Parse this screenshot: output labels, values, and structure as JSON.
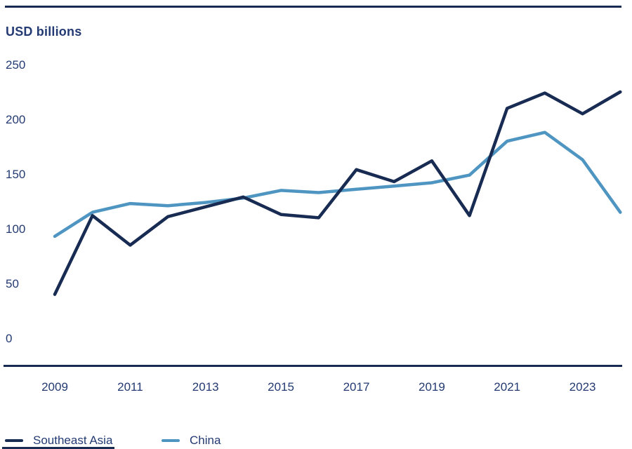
{
  "header": {
    "title": "USD billions"
  },
  "chart_data": {
    "type": "line",
    "title": "USD billions",
    "ylabel": "USD billions",
    "x": [
      2009,
      2010,
      2011,
      2012,
      2013,
      2014,
      2015,
      2016,
      2017,
      2018,
      2019,
      2020,
      2021,
      2022,
      2023,
      2024
    ],
    "series": [
      {
        "name": "Southeast Asia",
        "color": "#182b52",
        "values": [
          40,
          112,
          85,
          111,
          120,
          129,
          113,
          110,
          154,
          143,
          162,
          112,
          210,
          224,
          205,
          225
        ]
      },
      {
        "name": "China",
        "color": "#4f95c2",
        "values": [
          93,
          115,
          123,
          121,
          124,
          128,
          135,
          133,
          136,
          139,
          142,
          149,
          180,
          188,
          163,
          115
        ]
      }
    ],
    "ylim": [
      0,
      250
    ],
    "yticks": [
      0,
      50,
      100,
      150,
      200,
      250
    ],
    "xticks": [
      2009,
      2011,
      2013,
      2015,
      2017,
      2019,
      2021,
      2023
    ],
    "grid": false,
    "legend_position": "bottom",
    "axis_color": "#182b52",
    "text_color": "#233a72"
  }
}
